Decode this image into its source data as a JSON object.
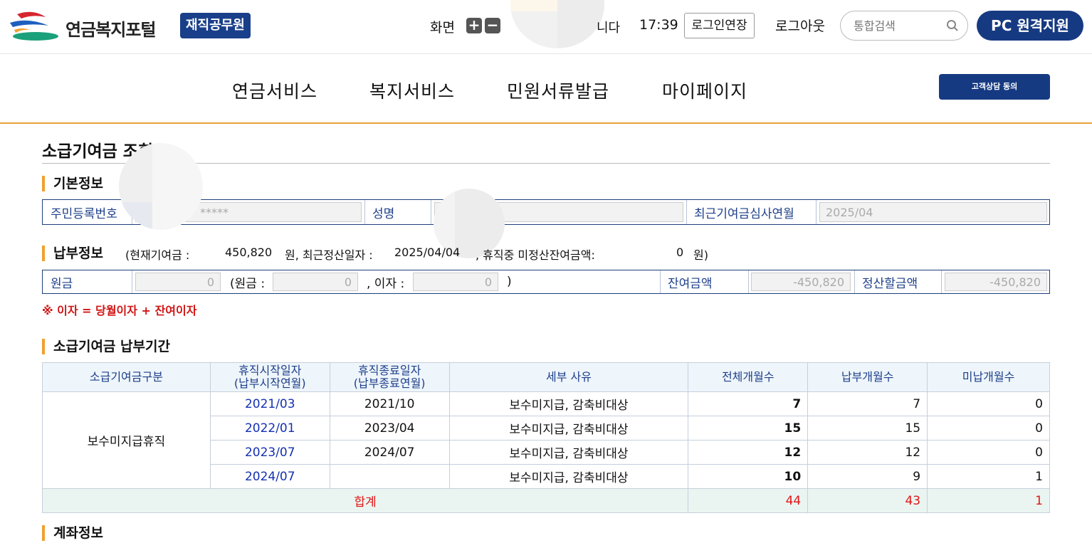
{
  "header": {
    "logo_text": "연금복지포털",
    "user_type": "재직공무원",
    "screen_label": "화면",
    "zoom_in": "+",
    "zoom_out": "−",
    "session_text": "니다",
    "session_time": "17:39",
    "extend_login": "로그인연장",
    "logout": "로그아웃",
    "search_placeholder": "통합검색",
    "remote_support": "PC 원격지원"
  },
  "nav": {
    "items": [
      "연금서비스",
      "복지서비스",
      "민원서류발급",
      "마이페이지"
    ],
    "consult_button": "고객상담 동의"
  },
  "page": {
    "title": "소급기여금 조회"
  },
  "basic_info": {
    "section_title": "기본정보",
    "rrn_label": "주민등록번호",
    "rrn_value": "*****",
    "name_label": "성명",
    "name_value": "",
    "review_label": "최근기여금심사연월",
    "review_value": "2025/04"
  },
  "payment_info": {
    "section_title": "납부정보",
    "summary_open": "(현재기여금 :",
    "current_contribution": "450,820",
    "summary_mid": "원, 최근정산일자 :",
    "last_settlement_date": "2025/04/04",
    "summary_mid2": ", 휴직중 미정산잔여금액:",
    "unsettled_amount": "0",
    "summary_close": "원)",
    "principal_label": "원금",
    "principal_value": "0",
    "paren_principal_label": "(원금 :",
    "paren_principal_value": "0",
    "interest_label": ", 이자 :",
    "interest_value": "0",
    "paren_close": ")",
    "balance_label": "잔여금액",
    "balance_value": "-450,820",
    "settle_label": "정산할금액",
    "settle_value": "-450,820",
    "note": "※ 이자 = 당월이자 + 잔여이자"
  },
  "period": {
    "section_title": "소급기여금 납부기간",
    "headers": {
      "type": "소급기여금구분",
      "start_1": "휴직시작일자",
      "start_2": "(납부시작연월)",
      "end_1": "휴직종료일자",
      "end_2": "(납부종료연월)",
      "reason": "세부 사유",
      "total": "전체개월수",
      "paid": "납부개월수",
      "unpaid": "미납개월수"
    },
    "type_value": "보수미지급휴직",
    "rows": [
      {
        "start": "2021/03",
        "end": "2021/10",
        "reason": "보수미지급, 감축비대상",
        "total": "7",
        "paid": "7",
        "unpaid": "0"
      },
      {
        "start": "2022/01",
        "end": "2023/04",
        "reason": "보수미지급, 감축비대상",
        "total": "15",
        "paid": "15",
        "unpaid": "0"
      },
      {
        "start": "2023/07",
        "end": "2024/07",
        "reason": "보수미지급, 감축비대상",
        "total": "12",
        "paid": "12",
        "unpaid": "0"
      },
      {
        "start": "2024/07",
        "end": "",
        "reason": "보수미지급, 감축비대상",
        "total": "10",
        "paid": "9",
        "unpaid": "1"
      }
    ],
    "total_row": {
      "label": "합계",
      "total": "44",
      "paid": "43",
      "unpaid": "1"
    }
  },
  "account": {
    "section_title": "계좌정보"
  },
  "colors": {
    "primary": "#163a82",
    "accent": "#f0a030",
    "alert": "#e01515",
    "link": "#1530b0"
  }
}
